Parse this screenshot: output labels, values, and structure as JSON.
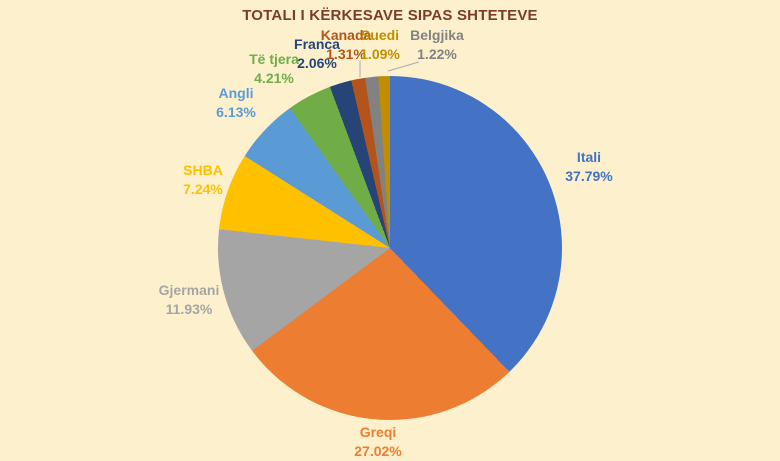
{
  "background_color": "#FDF1CD",
  "title_color": "#7C3B2B",
  "chart_data": {
    "type": "pie",
    "title": "TOTALI I KËRKESAVE SIPAS SHTETEVE",
    "legend": "none",
    "label_style": "category name + percentage, outside end",
    "start_angle_deg": 0,
    "direction": "clockwise",
    "leader_line_color": "#ABABAB",
    "categories": [
      "Itali",
      "Greqi",
      "Gjermani",
      "SHBA",
      "Angli",
      "Të tjera",
      "Franca",
      "Kanada",
      "Belgjika",
      "Suedi"
    ],
    "values": [
      37.79,
      27.02,
      11.93,
      7.24,
      6.13,
      4.21,
      2.06,
      1.31,
      1.22,
      1.09
    ],
    "slices": [
      {
        "label": "Itali",
        "value": 37.79,
        "pct_label": "37.79%",
        "color": "#4472C4"
      },
      {
        "label": "Greqi",
        "value": 27.02,
        "pct_label": "27.02%",
        "color": "#ED7D31"
      },
      {
        "label": "Gjermani",
        "value": 11.93,
        "pct_label": "11.93%",
        "color": "#A5A5A5"
      },
      {
        "label": "SHBA",
        "value": 7.24,
        "pct_label": "7.24%",
        "color": "#FFC000"
      },
      {
        "label": "Angli",
        "value": 6.13,
        "pct_label": "6.13%",
        "color": "#5B9BD5"
      },
      {
        "label": "Të tjera",
        "value": 4.21,
        "pct_label": "4.21%",
        "color": "#70AD47"
      },
      {
        "label": "Franca",
        "value": 2.06,
        "pct_label": "2.06%",
        "color": "#264478"
      },
      {
        "label": "Kanada",
        "value": 1.31,
        "pct_label": "1.31%",
        "color": "#B5541A"
      },
      {
        "label": "Belgjika",
        "value": 1.22,
        "pct_label": "1.22%",
        "color": "#828282"
      },
      {
        "label": "Suedi",
        "value": 1.09,
        "pct_label": "1.09%",
        "color": "#BF8F00"
      }
    ]
  }
}
